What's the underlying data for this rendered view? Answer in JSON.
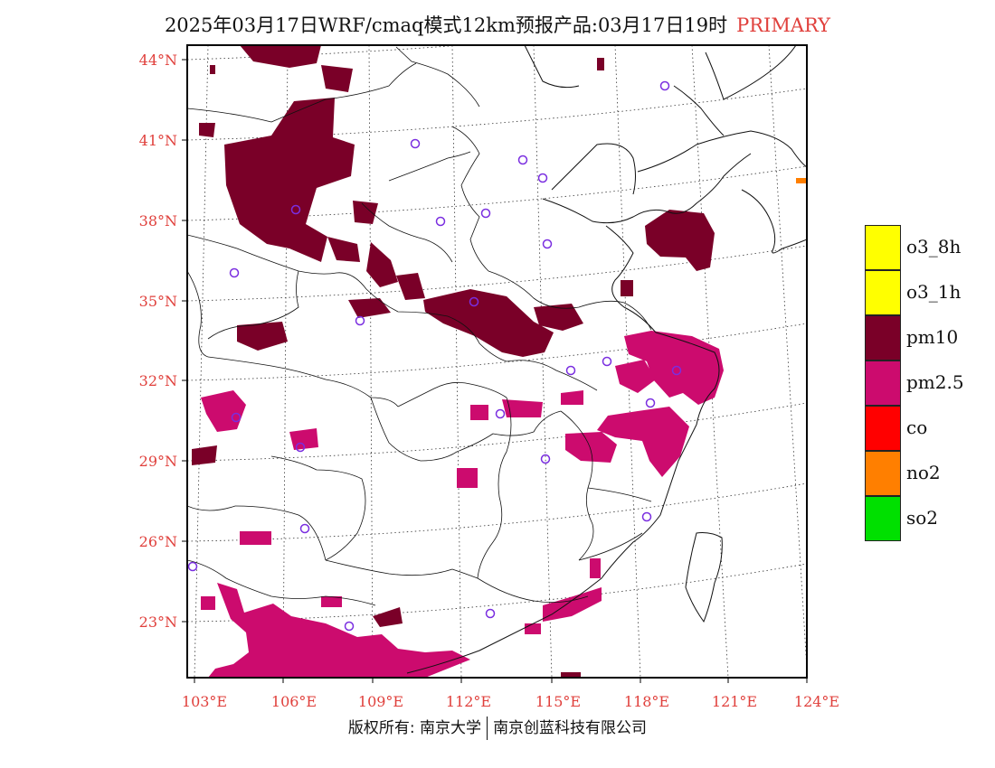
{
  "title": {
    "main": "2025年03月17日WRF/cmaq模式12km预报产品:03月17日19时",
    "tag": "PRIMARY"
  },
  "map": {
    "lat_labels": [
      "44°N",
      "41°N",
      "38°N",
      "35°N",
      "32°N",
      "29°N",
      "26°N",
      "23°N"
    ],
    "lon_labels": [
      "103°E",
      "106°E",
      "109°E",
      "112°E",
      "115°E",
      "118°E",
      "121°E",
      "124°E"
    ],
    "label_color": "#e0403c",
    "dominant_pollutants": [
      "pm10",
      "pm2.5"
    ]
  },
  "legend": {
    "items": [
      {
        "label": "o3_8h",
        "color": "#ffff00"
      },
      {
        "label": "o3_1h",
        "color": "#ffff00"
      },
      {
        "label": "pm10",
        "color": "#7a0028"
      },
      {
        "label": "pm2.5",
        "color": "#cc0b6e"
      },
      {
        "label": "co",
        "color": "#ff0000"
      },
      {
        "label": "no2",
        "color": "#ff7f00"
      },
      {
        "label": "so2",
        "color": "#00e000"
      }
    ]
  },
  "footer": {
    "left": "版权所有: 南京大学",
    "right": "南京创蓝科技有限公司"
  }
}
